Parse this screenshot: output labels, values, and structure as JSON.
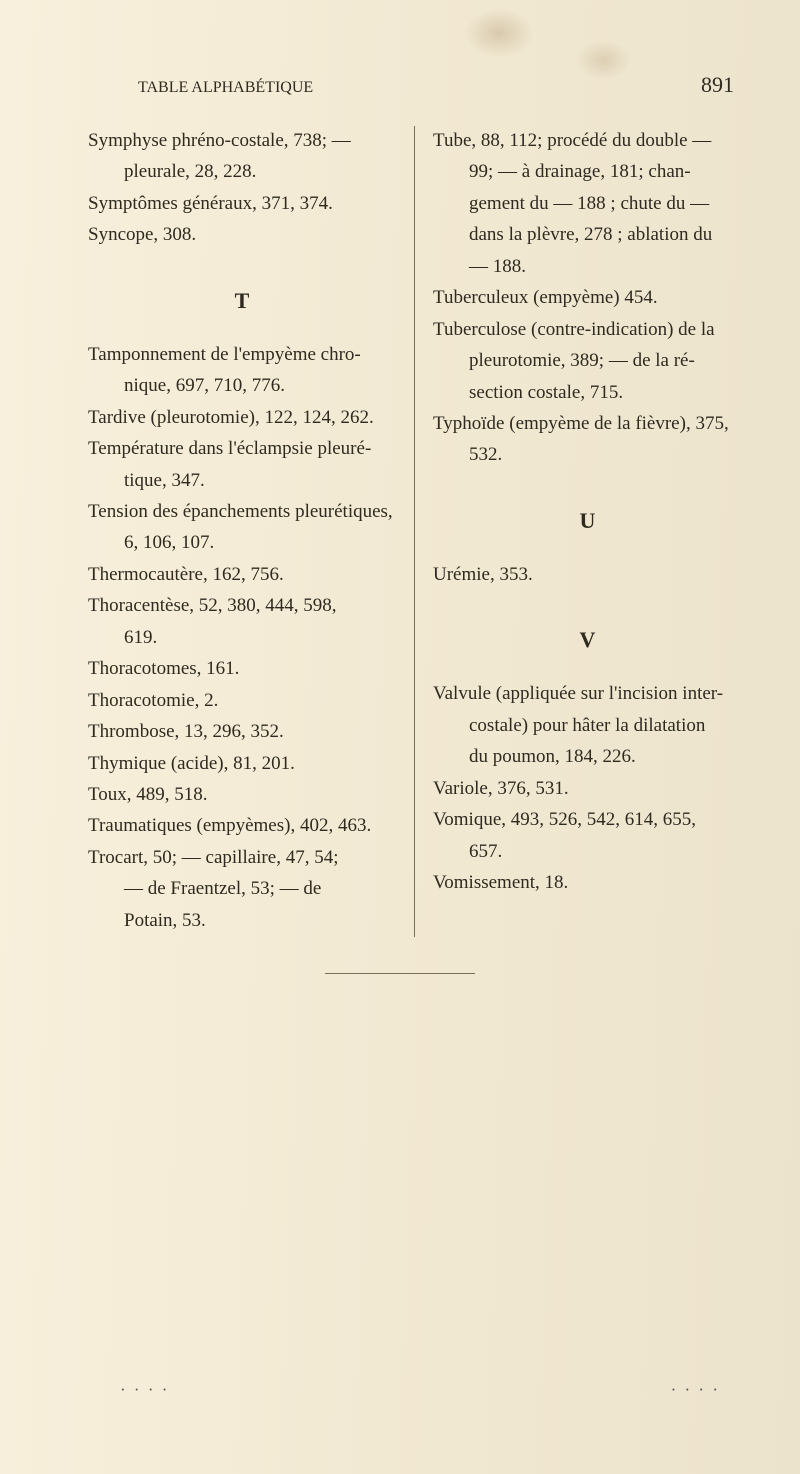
{
  "header": {
    "running_title": "TABLE ALPHABÉTIQUE",
    "page_number": "891"
  },
  "left": {
    "e0": "Symphyse phréno-costale, 738; —",
    "e1": "pleurale, 28, 228.",
    "e2": "Symptômes généraux, 371, 374.",
    "e3": "Syncope, 308.",
    "letter_T": "T",
    "e4": "Tamponnement de l'empyème chro-",
    "e5": "nique, 697, 710, 776.",
    "e6": "Tardive (pleurotomie), 122, 124, 262.",
    "e7": "Température dans l'éclampsie pleuré-",
    "e8": "tique, 347.",
    "e9": "Tension des épanchements pleurétiques,",
    "e10": "6, 106, 107.",
    "e11": "Thermocautère, 162, 756.",
    "e12": "Thoracentèse, 52, 380, 444, 598,",
    "e13": "619.",
    "e14": "Thoracotomes, 161.",
    "e15": "Thoracotomie, 2.",
    "e16": "Thrombose, 13, 296, 352.",
    "e17": "Thymique (acide), 81, 201.",
    "e18": "Toux, 489, 518.",
    "e19": "Traumatiques (empyèmes), 402, 463.",
    "e20": "Trocart, 50; — capillaire, 47, 54;",
    "e21": "— de Fraentzel, 53; — de",
    "e22": "Potain, 53."
  },
  "right": {
    "e0": "Tube, 88, 112; procédé du double —",
    "e1": "99; — à drainage, 181; chan-",
    "e2": "gement du — 188 ; chute du —",
    "e3": "dans la plèvre, 278 ; ablation du",
    "e4": "— 188.",
    "e5": "Tuberculeux (empyème) 454.",
    "e6": "Tuberculose (contre-indication) de la",
    "e7": "pleurotomie, 389; — de la ré-",
    "e8": "section costale, 715.",
    "e9": "Typhoïde (empyème de la fièvre), 375,",
    "e10": "532.",
    "letter_U": "U",
    "e11": "Urémie, 353.",
    "letter_V": "V",
    "e12": "Valvule (appliquée sur l'incision inter-",
    "e13": "costale) pour hâter la dilatation",
    "e14": "du poumon, 184, 226.",
    "e15": "Variole, 376, 531.",
    "e16": "Vomique, 493, 526, 542, 614, 655,",
    "e17": "657.",
    "e18": "Vomissement, 18."
  },
  "footer": {
    "dots_left": "· · · ·",
    "dots_right": "· · · ·"
  }
}
